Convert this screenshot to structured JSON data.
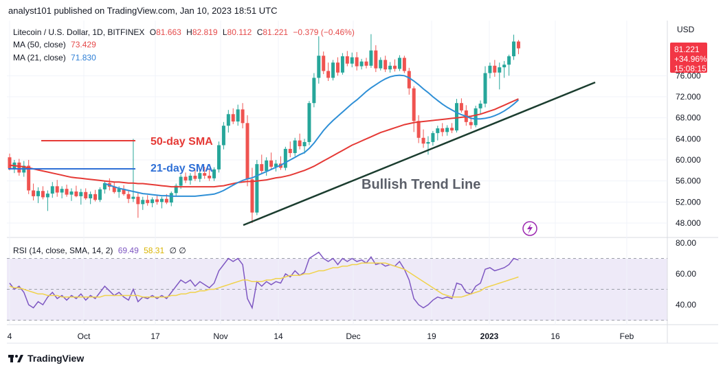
{
  "header": {
    "text": "analyst101 published on TradingView.com, Jan 10, 2023 18:51 UTC"
  },
  "legend": {
    "symbol": "Litecoin / U.S. Dollar, 1D, BITFINEX",
    "o_label": "O",
    "o": "81.663",
    "h_label": "H",
    "h": "82.819",
    "l_label": "L",
    "l": "80.112",
    "c_label": "C",
    "c": "81.221",
    "change": "−0.379 (−0.46%)",
    "ma50_label": "MA (50, close)",
    "ma50": "73.429",
    "ma21_label": "MA (21, close)",
    "ma21": "71.830",
    "rsi_label": "RSI (14, close, SMA, 14, 2)",
    "rsi": "69.49",
    "rsi_sma": "58.31",
    "rsi_extra": "∅ ∅"
  },
  "price_badge": {
    "price": "81.221",
    "change": "+34.96%",
    "countdown": "15:08:15"
  },
  "currency": "USD",
  "annotations": {
    "sma50": "50-day SMA",
    "sma21": "21-day SMA",
    "trend": "Bullish Trend Line"
  },
  "footer": {
    "brand": "TradingView"
  },
  "colors": {
    "up": "#26a69a",
    "down": "#ef5350",
    "ma50": "#e53935",
    "ma21": "#2e8fd6",
    "rsi": "#7e57c2",
    "rsi_sma": "#f0d24a",
    "trend": "#1b3d2f"
  },
  "chart_data": [
    {
      "type": "candlestick",
      "y_axis_ticks": [
        "48.000",
        "52.000",
        "56.000",
        "60.000",
        "64.000",
        "68.000",
        "72.000",
        "76.000"
      ],
      "x_axis_ticks": [
        "4",
        "Oct",
        "17",
        "Nov",
        "14",
        "Dec",
        "19",
        "2023",
        "16",
        "Feb"
      ],
      "ylim": [
        46,
        84
      ],
      "ohlc": [
        [
          60.5,
          61.2,
          58.0,
          58.4
        ],
        [
          58.4,
          60.0,
          57.5,
          59.5
        ],
        [
          59.5,
          60.2,
          57.0,
          57.6
        ],
        [
          57.6,
          59.8,
          56.8,
          58.9
        ],
        [
          58.9,
          60.0,
          53.5,
          54.2
        ],
        [
          54.2,
          55.5,
          52.3,
          53.1
        ],
        [
          53.1,
          54.8,
          51.8,
          54.1
        ],
        [
          54.1,
          55.0,
          52.5,
          52.9
        ],
        [
          52.9,
          54.2,
          50.3,
          53.6
        ],
        [
          53.6,
          55.8,
          52.8,
          55.0
        ],
        [
          55.0,
          56.2,
          53.0,
          53.8
        ],
        [
          53.8,
          55.0,
          52.7,
          54.5
        ],
        [
          54.5,
          55.3,
          53.0,
          53.4
        ],
        [
          53.4,
          54.6,
          52.2,
          54.0
        ],
        [
          54.0,
          55.1,
          52.9,
          53.1
        ],
        [
          53.1,
          54.5,
          51.5,
          53.9
        ],
        [
          53.9,
          54.6,
          52.4,
          52.7
        ],
        [
          52.7,
          54.0,
          51.6,
          53.5
        ],
        [
          53.5,
          54.3,
          52.1,
          52.4
        ],
        [
          52.4,
          54.8,
          52.0,
          54.4
        ],
        [
          54.4,
          56.0,
          53.6,
          55.6
        ],
        [
          55.6,
          56.5,
          54.2,
          54.9
        ],
        [
          54.9,
          55.8,
          53.6,
          53.9
        ],
        [
          53.9,
          55.0,
          52.8,
          54.5
        ],
        [
          54.5,
          55.2,
          53.2,
          53.5
        ],
        [
          53.5,
          54.2,
          51.8,
          52.6
        ],
        [
          52.6,
          64.0,
          52.0,
          53.0
        ],
        [
          53.0,
          53.8,
          49.0,
          51.6
        ],
        [
          51.6,
          53.0,
          50.5,
          52.4
        ],
        [
          52.4,
          53.3,
          51.3,
          51.8
        ],
        [
          51.8,
          52.9,
          51.0,
          52.5
        ],
        [
          52.5,
          53.4,
          51.5,
          52.0
        ],
        [
          52.0,
          53.0,
          50.8,
          52.6
        ],
        [
          52.6,
          53.5,
          51.6,
          51.9
        ],
        [
          51.9,
          54.0,
          51.2,
          53.7
        ],
        [
          53.7,
          55.5,
          53.0,
          55.1
        ],
        [
          55.1,
          57.2,
          54.5,
          56.8
        ],
        [
          56.8,
          57.6,
          55.6,
          56.1
        ],
        [
          56.1,
          57.5,
          55.3,
          57.0
        ],
        [
          57.0,
          58.2,
          56.0,
          56.4
        ],
        [
          56.4,
          58.0,
          55.8,
          57.5
        ],
        [
          57.5,
          58.7,
          56.4,
          57.0
        ],
        [
          57.0,
          58.2,
          56.0,
          56.5
        ],
        [
          56.5,
          58.6,
          56.0,
          58.2
        ],
        [
          58.2,
          63.5,
          57.6,
          62.8
        ],
        [
          62.8,
          67.2,
          62.0,
          66.5
        ],
        [
          66.5,
          69.5,
          65.2,
          68.7
        ],
        [
          68.7,
          69.8,
          66.8,
          67.3
        ],
        [
          67.3,
          70.5,
          66.5,
          69.6
        ],
        [
          69.6,
          70.8,
          66.0,
          67.0
        ],
        [
          67.0,
          68.5,
          55.0,
          56.3
        ],
        [
          56.3,
          58.5,
          48.0,
          50.0
        ],
        [
          50.0,
          60.0,
          49.5,
          59.2
        ],
        [
          59.2,
          61.0,
          57.3,
          57.9
        ],
        [
          57.9,
          60.5,
          57.0,
          59.9
        ],
        [
          59.9,
          61.4,
          58.2,
          58.7
        ],
        [
          58.7,
          60.0,
          57.8,
          59.3
        ],
        [
          59.3,
          60.7,
          58.1,
          58.5
        ],
        [
          58.5,
          62.5,
          58.0,
          62.1
        ],
        [
          62.1,
          63.5,
          60.5,
          61.3
        ],
        [
          61.3,
          64.2,
          60.7,
          63.7
        ],
        [
          63.7,
          65.0,
          62.0,
          62.6
        ],
        [
          62.6,
          64.0,
          61.2,
          63.4
        ],
        [
          63.4,
          71.2,
          62.8,
          70.8
        ],
        [
          70.8,
          76.5,
          70.0,
          75.6
        ],
        [
          75.6,
          83.5,
          74.5,
          79.8
        ],
        [
          79.8,
          80.6,
          76.3,
          76.9
        ],
        [
          76.9,
          78.5,
          75.0,
          75.6
        ],
        [
          75.6,
          79.0,
          75.1,
          78.5
        ],
        [
          78.5,
          79.5,
          76.0,
          76.6
        ],
        [
          76.6,
          80.3,
          76.2,
          79.7
        ],
        [
          79.7,
          80.7,
          77.8,
          78.3
        ],
        [
          78.3,
          80.4,
          77.6,
          79.5
        ],
        [
          79.5,
          80.5,
          77.0,
          77.8
        ],
        [
          77.8,
          79.2,
          77.2,
          78.7
        ],
        [
          78.7,
          79.4,
          77.4,
          77.9
        ],
        [
          77.9,
          83.9,
          77.5,
          80.8
        ],
        [
          80.8,
          81.8,
          76.7,
          77.4
        ],
        [
          77.4,
          79.5,
          77.0,
          79.0
        ],
        [
          79.0,
          79.8,
          76.7,
          77.2
        ],
        [
          77.2,
          78.6,
          76.6,
          77.9
        ],
        [
          77.9,
          79.1,
          76.8,
          77.3
        ],
        [
          77.3,
          79.9,
          76.9,
          79.4
        ],
        [
          79.4,
          79.8,
          76.5,
          76.9
        ],
        [
          76.9,
          77.5,
          72.4,
          73.6
        ],
        [
          73.6,
          74.0,
          65.3,
          67.4
        ],
        [
          67.4,
          68.5,
          63.2,
          64.2
        ],
        [
          64.2,
          65.8,
          62.3,
          63.1
        ],
        [
          63.1,
          64.5,
          61.0,
          63.4
        ],
        [
          63.4,
          65.5,
          62.7,
          65.1
        ],
        [
          65.1,
          66.5,
          63.7,
          66.0
        ],
        [
          66.0,
          67.0,
          64.5,
          65.3
        ],
        [
          65.3,
          66.6,
          64.6,
          66.1
        ],
        [
          66.1,
          67.0,
          65.1,
          65.6
        ],
        [
          65.6,
          71.6,
          65.2,
          70.8
        ],
        [
          70.8,
          71.7,
          69.0,
          69.4
        ],
        [
          69.4,
          70.4,
          66.5,
          67.2
        ],
        [
          67.2,
          68.2,
          65.9,
          66.6
        ],
        [
          66.6,
          70.3,
          66.2,
          69.8
        ],
        [
          69.8,
          71.3,
          68.8,
          70.7
        ],
        [
          70.7,
          77.8,
          70.0,
          76.5
        ],
        [
          76.5,
          78.5,
          75.5,
          77.9
        ],
        [
          77.9,
          79.0,
          75.8,
          76.6
        ],
        [
          76.6,
          78.5,
          73.4,
          77.6
        ],
        [
          77.6,
          78.8,
          75.6,
          78.1
        ],
        [
          78.1,
          80.0,
          76.0,
          79.7
        ],
        [
          79.7,
          83.8,
          79.0,
          82.5
        ],
        [
          82.5,
          82.8,
          80.1,
          81.2
        ]
      ],
      "series": [
        {
          "name": "MA (50, close)",
          "values": [
            59.0,
            58.9,
            58.8,
            58.7,
            58.5,
            58.3,
            58.1,
            57.9,
            57.7,
            57.5,
            57.3,
            57.1,
            56.9,
            56.7,
            56.6,
            56.5,
            56.4,
            56.3,
            56.2,
            56.1,
            56.0,
            55.9,
            55.8,
            55.8,
            55.7,
            55.6,
            55.6,
            55.5,
            55.5,
            55.4,
            55.3,
            55.2,
            55.1,
            55.0,
            54.9,
            54.9,
            54.9,
            54.9,
            54.9,
            54.9,
            54.9,
            54.9,
            54.9,
            54.9,
            55.0,
            55.1,
            55.3,
            55.5,
            55.7,
            55.8,
            55.9,
            55.9,
            56.0,
            56.1,
            56.2,
            56.4,
            56.6,
            56.7,
            56.9,
            57.1,
            57.4,
            57.7,
            58.0,
            58.4,
            58.8,
            59.3,
            59.8,
            60.3,
            60.8,
            61.3,
            61.8,
            62.3,
            62.8,
            63.2,
            63.6,
            64.0,
            64.4,
            64.8,
            65.2,
            65.5,
            65.8,
            66.1,
            66.4,
            66.7,
            66.9,
            67.1,
            67.2,
            67.3,
            67.4,
            67.5,
            67.6,
            67.7,
            67.8,
            67.9,
            68.0,
            68.1,
            68.2,
            68.3,
            68.5,
            68.7,
            69.0,
            69.3,
            69.6,
            70.0,
            70.4,
            70.8,
            71.2,
            71.6
          ]
        },
        {
          "name": "MA (21, close)",
          "values": [
            null,
            null,
            null,
            null,
            null,
            null,
            null,
            null,
            null,
            null,
            null,
            null,
            null,
            null,
            null,
            null,
            null,
            null,
            null,
            null,
            55.5,
            55.2,
            54.9,
            54.6,
            54.4,
            54.2,
            54.0,
            53.8,
            53.6,
            53.5,
            53.4,
            53.3,
            53.2,
            53.2,
            53.1,
            53.1,
            53.1,
            53.1,
            53.1,
            53.1,
            53.2,
            53.3,
            53.4,
            53.5,
            53.8,
            54.2,
            54.7,
            55.2,
            55.7,
            56.1,
            56.4,
            56.6,
            57.0,
            57.4,
            57.8,
            58.2,
            58.6,
            59.0,
            59.5,
            60.0,
            60.5,
            61.0,
            61.4,
            62.2,
            63.2,
            64.4,
            65.6,
            66.6,
            67.5,
            68.3,
            69.1,
            69.9,
            70.7,
            71.4,
            72.2,
            73.0,
            73.7,
            74.3,
            74.9,
            75.4,
            75.8,
            76.0,
            76.1,
            76.0,
            75.6,
            75.0,
            74.3,
            73.5,
            72.8,
            72.0,
            71.3,
            70.6,
            70.0,
            69.5,
            69.0,
            68.6,
            68.3,
            67.9,
            67.8,
            67.8,
            67.9,
            68.1,
            68.4,
            68.8,
            69.3,
            69.9,
            70.6,
            71.4
          ]
        }
      ]
    },
    {
      "type": "line",
      "y_axis_ticks": [
        "40.00",
        "60.00",
        "80.00"
      ],
      "ylim": [
        30,
        85
      ],
      "bands": [
        30,
        50,
        70
      ],
      "series": [
        {
          "name": "RSI",
          "values": [
            54,
            50,
            52,
            48,
            40,
            38,
            42,
            40,
            45,
            48,
            44,
            46,
            43,
            46,
            44,
            47,
            43,
            46,
            44,
            48,
            52,
            49,
            46,
            48,
            45,
            43,
            50,
            42,
            45,
            44,
            46,
            44,
            46,
            44,
            48,
            52,
            56,
            54,
            56,
            52,
            55,
            53,
            51,
            54,
            62,
            66,
            70,
            68,
            70,
            66,
            44,
            38,
            55,
            52,
            55,
            53,
            55,
            54,
            60,
            58,
            62,
            59,
            61,
            70,
            72,
            74,
            70,
            68,
            70,
            66,
            70,
            68,
            70,
            68,
            69,
            67,
            71,
            66,
            67,
            65,
            66,
            65,
            68,
            63,
            56,
            44,
            40,
            38,
            40,
            43,
            45,
            44,
            45,
            44,
            54,
            53,
            48,
            47,
            52,
            54,
            63,
            64,
            62,
            63,
            64,
            66,
            70,
            69
          ]
        },
        {
          "name": "RSI SMA",
          "values": [
            52,
            51,
            51,
            50,
            49,
            48,
            47,
            47,
            46,
            46,
            46,
            45,
            45,
            45,
            45,
            45,
            45,
            45,
            45,
            45,
            46,
            46,
            46,
            46,
            46,
            46,
            46,
            46,
            45,
            45,
            45,
            45,
            45,
            45,
            46,
            46,
            47,
            47,
            48,
            48,
            49,
            49,
            50,
            50,
            51,
            52,
            53,
            54,
            55,
            56,
            56,
            55,
            55,
            55,
            56,
            56,
            57,
            57,
            58,
            59,
            59,
            59,
            60,
            60,
            61,
            62,
            62,
            63,
            64,
            64,
            65,
            65,
            66,
            66,
            67,
            67,
            67,
            67,
            67,
            67,
            66,
            65,
            64,
            63,
            61,
            59,
            57,
            55,
            53,
            51,
            49,
            47,
            46,
            45,
            45,
            45,
            46,
            47,
            48,
            49,
            51,
            52,
            53,
            54,
            55,
            56,
            57,
            58
          ]
        }
      ]
    }
  ]
}
